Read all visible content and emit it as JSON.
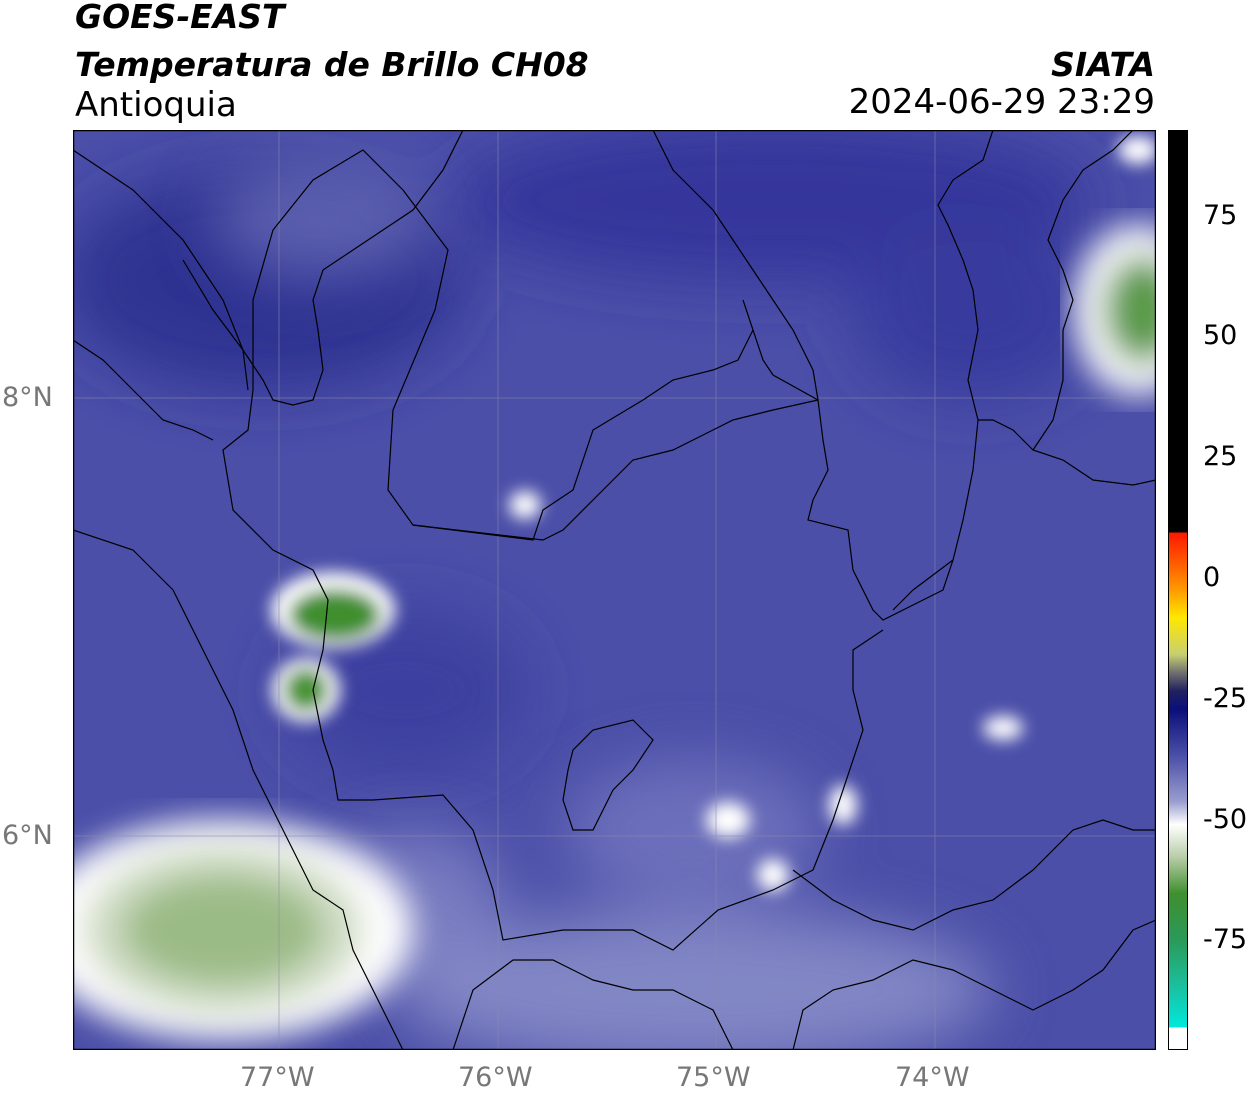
{
  "header": {
    "satellite": "GOES-EAST",
    "product": "Temperatura de Brillo CH08",
    "region": "Antioquia",
    "agency": "SIATA",
    "datetime": "2024-06-29 23:29"
  },
  "map": {
    "extent_lon": [
      -77.95,
      -73.0
    ],
    "extent_lat": [
      5.05,
      9.22
    ],
    "lon_ticks": [
      "77°W",
      "76°W",
      "75°W",
      "74°W"
    ],
    "lat_ticks": [
      "8°N",
      "6°N"
    ],
    "gridlines": true
  },
  "colorbar": {
    "range": [
      -95,
      90
    ],
    "labels": [
      "75",
      "50",
      "25",
      "0",
      "-25",
      "-50",
      "-75"
    ],
    "colors": {
      "warm": "#000000",
      "red": "#ff2000",
      "orange": "#ff9900",
      "yellow": "#ffee00",
      "dark_blue": "#0a1078",
      "background_blue": "#4b4fa8",
      "white": "#ffffff",
      "green": "#3a8a2a",
      "cyan": "#00e0d0"
    }
  }
}
